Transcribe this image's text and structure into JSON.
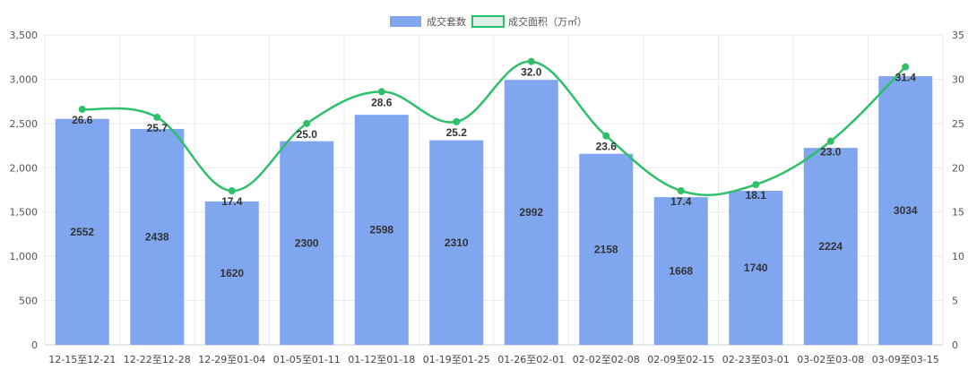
{
  "chart_data": {
    "type": "bar",
    "categories": [
      "12-15至12-21",
      "12-22至12-28",
      "12-29至01-04",
      "01-05至01-11",
      "01-12至01-18",
      "01-19至01-25",
      "01-26至02-01",
      "02-02至02-08",
      "02-09至02-15",
      "02-23至03-01",
      "03-02至03-08",
      "03-09至03-15"
    ],
    "series": [
      {
        "name": "成交套数",
        "type": "bar",
        "axis": "left",
        "color": "#7fa6ef",
        "values": [
          2552,
          2438,
          1620,
          2300,
          2598,
          2310,
          2992,
          2158,
          1668,
          1740,
          2224,
          3034
        ]
      },
      {
        "name": "成交面积（万㎡）",
        "type": "line",
        "axis": "right",
        "color": "#2fbf6b",
        "values": [
          26.6,
          25.7,
          17.4,
          25.0,
          28.6,
          25.2,
          32.0,
          23.6,
          17.4,
          18.1,
          23.0,
          31.4
        ]
      }
    ],
    "y_left": {
      "min": 0,
      "max": 3500,
      "step": 500,
      "ticks": [
        "0",
        "500",
        "1,000",
        "1,500",
        "2,000",
        "2,500",
        "3,000",
        "3,500"
      ]
    },
    "y_right": {
      "min": 0,
      "max": 35,
      "step": 5,
      "ticks": [
        "0",
        "5",
        "10",
        "15",
        "20",
        "25",
        "30",
        "35"
      ]
    },
    "grid": true,
    "legend_position": "top-center",
    "line_smooth": true
  }
}
